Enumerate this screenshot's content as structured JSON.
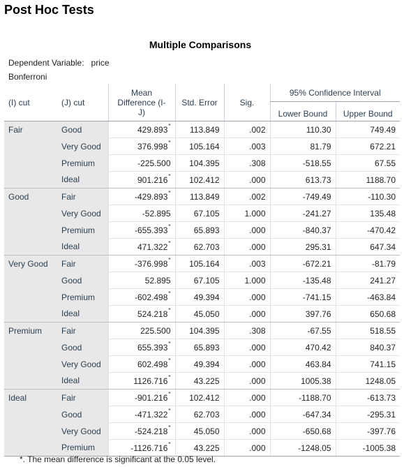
{
  "heading": "Post Hoc Tests",
  "table_title": "Multiple Comparisons",
  "dependent_label": "Dependent Variable:",
  "dependent_value": "price",
  "method": "Bonferroni",
  "headers": {
    "i_cut": "(I) cut",
    "j_cut": "(J) cut",
    "mean_diff_1": "Mean",
    "mean_diff_2": "Difference (I-",
    "mean_diff_3": "J)",
    "std_error": "Std. Error",
    "sig": "Sig.",
    "ci": "95% Confidence Interval",
    "lower": "Lower Bound",
    "upper": "Upper Bound"
  },
  "groups": [
    {
      "name": "Fair",
      "rows": [
        {
          "j": "Good",
          "md": "429.893",
          "star": true,
          "se": "113.849",
          "sig": ".002",
          "lo": "110.30",
          "hi": "749.49"
        },
        {
          "j": "Very Good",
          "md": "376.998",
          "star": true,
          "se": "105.164",
          "sig": ".003",
          "lo": "81.79",
          "hi": "672.21"
        },
        {
          "j": "Premium",
          "md": "-225.500",
          "star": false,
          "se": "104.395",
          "sig": ".308",
          "lo": "-518.55",
          "hi": "67.55"
        },
        {
          "j": "Ideal",
          "md": "901.216",
          "star": true,
          "se": "102.412",
          "sig": ".000",
          "lo": "613.73",
          "hi": "1188.70"
        }
      ]
    },
    {
      "name": "Good",
      "rows": [
        {
          "j": "Fair",
          "md": "-429.893",
          "star": true,
          "se": "113.849",
          "sig": ".002",
          "lo": "-749.49",
          "hi": "-110.30"
        },
        {
          "j": "Very Good",
          "md": "-52.895",
          "star": false,
          "se": "67.105",
          "sig": "1.000",
          "lo": "-241.27",
          "hi": "135.48"
        },
        {
          "j": "Premium",
          "md": "-655.393",
          "star": true,
          "se": "65.893",
          "sig": ".000",
          "lo": "-840.37",
          "hi": "-470.42"
        },
        {
          "j": "Ideal",
          "md": "471.322",
          "star": true,
          "se": "62.703",
          "sig": ".000",
          "lo": "295.31",
          "hi": "647.34"
        }
      ]
    },
    {
      "name": "Very Good",
      "rows": [
        {
          "j": "Fair",
          "md": "-376.998",
          "star": true,
          "se": "105.164",
          "sig": ".003",
          "lo": "-672.21",
          "hi": "-81.79"
        },
        {
          "j": "Good",
          "md": "52.895",
          "star": false,
          "se": "67.105",
          "sig": "1.000",
          "lo": "-135.48",
          "hi": "241.27"
        },
        {
          "j": "Premium",
          "md": "-602.498",
          "star": true,
          "se": "49.394",
          "sig": ".000",
          "lo": "-741.15",
          "hi": "-463.84"
        },
        {
          "j": "Ideal",
          "md": "524.218",
          "star": true,
          "se": "45.050",
          "sig": ".000",
          "lo": "397.76",
          "hi": "650.68"
        }
      ]
    },
    {
      "name": "Premium",
      "rows": [
        {
          "j": "Fair",
          "md": "225.500",
          "star": false,
          "se": "104.395",
          "sig": ".308",
          "lo": "-67.55",
          "hi": "518.55"
        },
        {
          "j": "Good",
          "md": "655.393",
          "star": true,
          "se": "65.893",
          "sig": ".000",
          "lo": "470.42",
          "hi": "840.37"
        },
        {
          "j": "Very Good",
          "md": "602.498",
          "star": true,
          "se": "49.394",
          "sig": ".000",
          "lo": "463.84",
          "hi": "741.15"
        },
        {
          "j": "Ideal",
          "md": "1126.716",
          "star": true,
          "se": "43.225",
          "sig": ".000",
          "lo": "1005.38",
          "hi": "1248.05"
        }
      ]
    },
    {
      "name": "Ideal",
      "rows": [
        {
          "j": "Fair",
          "md": "-901.216",
          "star": true,
          "se": "102.412",
          "sig": ".000",
          "lo": "-1188.70",
          "hi": "-613.73"
        },
        {
          "j": "Good",
          "md": "-471.322",
          "star": true,
          "se": "62.703",
          "sig": ".000",
          "lo": "-647.34",
          "hi": "-295.31"
        },
        {
          "j": "Very Good",
          "md": "-524.218",
          "star": true,
          "se": "45.050",
          "sig": ".000",
          "lo": "-650.68",
          "hi": "-397.76"
        },
        {
          "j": "Premium",
          "md": "-1126.716",
          "star": true,
          "se": "43.225",
          "sig": ".000",
          "lo": "-1248.05",
          "hi": "-1005.38"
        }
      ]
    }
  ],
  "star_mark": "*",
  "footnote": "*. The mean difference is significant at the 0.05 level."
}
